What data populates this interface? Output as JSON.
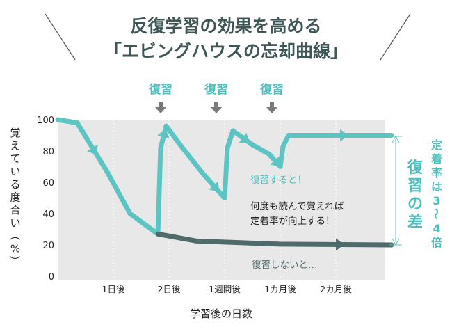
{
  "title": {
    "line1": "反復学習の効果を高める",
    "line2": "「エビングハウスの忘却曲線」"
  },
  "chart_data": {
    "type": "line",
    "ylabel": "覚えている度合い（%）",
    "xlabel": "学習後の日数",
    "ylim": [
      0,
      100
    ],
    "yticks": [
      0,
      20,
      40,
      60,
      80,
      100
    ],
    "xticks": [
      "1日後",
      "2日後",
      "1週間後",
      "1カ月後",
      "2カ月後"
    ],
    "grid": "vertical-dotted",
    "review_label": "復習",
    "series": [
      {
        "name": "復習すると！",
        "color": "#5dc4c4",
        "points": [
          [
            0,
            100
          ],
          [
            0.35,
            98
          ],
          [
            0.9,
            66
          ],
          [
            1.3,
            40
          ],
          [
            1.8,
            27
          ],
          [
            1.85,
            82
          ],
          [
            1.95,
            96
          ],
          [
            2.2,
            84
          ],
          [
            2.6,
            66
          ],
          [
            3.0,
            50
          ],
          [
            3.05,
            82
          ],
          [
            3.15,
            93
          ],
          [
            3.5,
            84
          ],
          [
            3.8,
            78
          ],
          [
            4.0,
            70
          ],
          [
            4.05,
            83
          ],
          [
            4.15,
            90
          ],
          [
            6.0,
            90
          ]
        ]
      },
      {
        "name": "復習しないと…",
        "color": "#4f6a6a",
        "points": [
          [
            1.8,
            27
          ],
          [
            2.5,
            22.5
          ],
          [
            4.0,
            20.5
          ],
          [
            6.0,
            20
          ]
        ]
      }
    ],
    "annotations": {
      "with_review": "復習すると！",
      "without_review": "復習しないと…",
      "note_line1": "何度も読んで覚えれば",
      "note_line2": "定着率が向上する！",
      "gap": "復習の差",
      "retention": "定着率は3～4倍"
    }
  }
}
